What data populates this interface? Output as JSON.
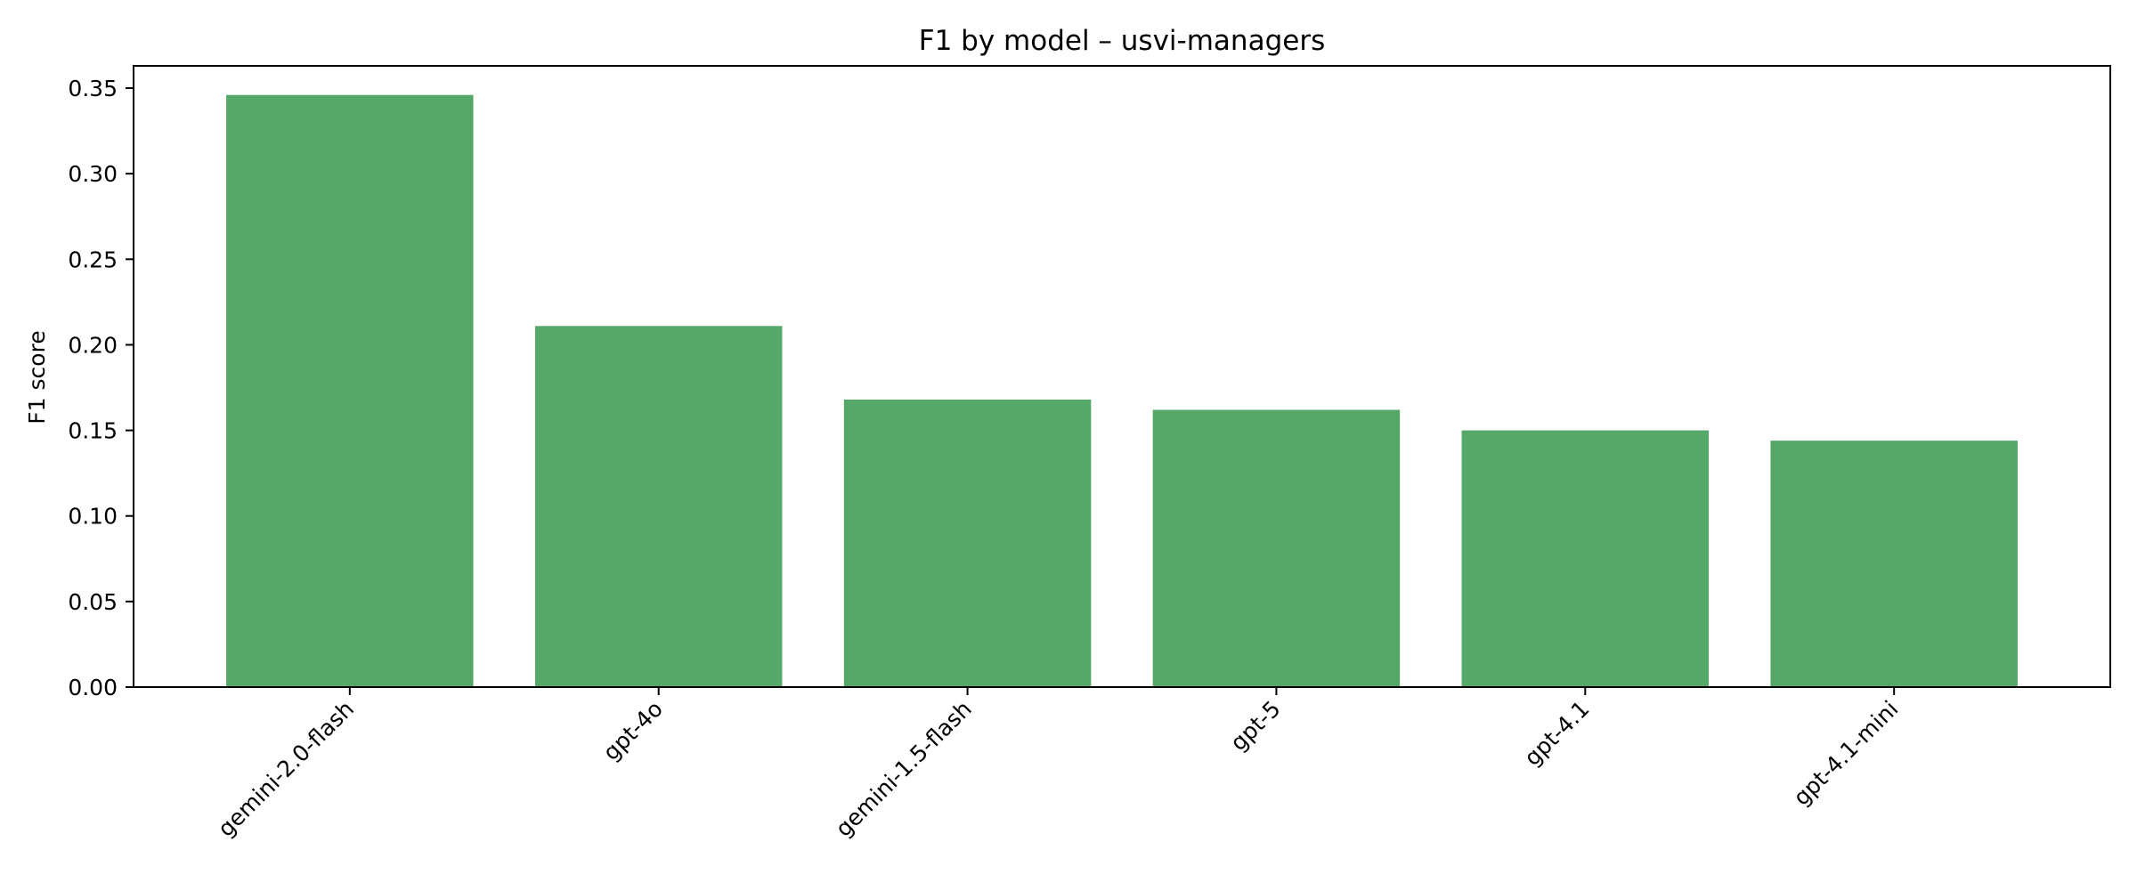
{
  "chart_data": {
    "type": "bar",
    "title": "F1 by model – usvi-managers",
    "xlabel": "",
    "ylabel": "F1 score",
    "categories": [
      "gemini-2.0-flash",
      "gpt-4o",
      "gemini-1.5-flash",
      "gpt-5",
      "gpt-4.1",
      "gpt-4.1-mini"
    ],
    "values": [
      0.346,
      0.211,
      0.168,
      0.162,
      0.15,
      0.144
    ],
    "ylim": [
      0,
      0.363
    ],
    "yticks": [
      "0.00",
      "0.05",
      "0.10",
      "0.15",
      "0.20",
      "0.25",
      "0.30",
      "0.35"
    ],
    "bar_color": "#55a868",
    "grid": false,
    "legend": "none"
  }
}
